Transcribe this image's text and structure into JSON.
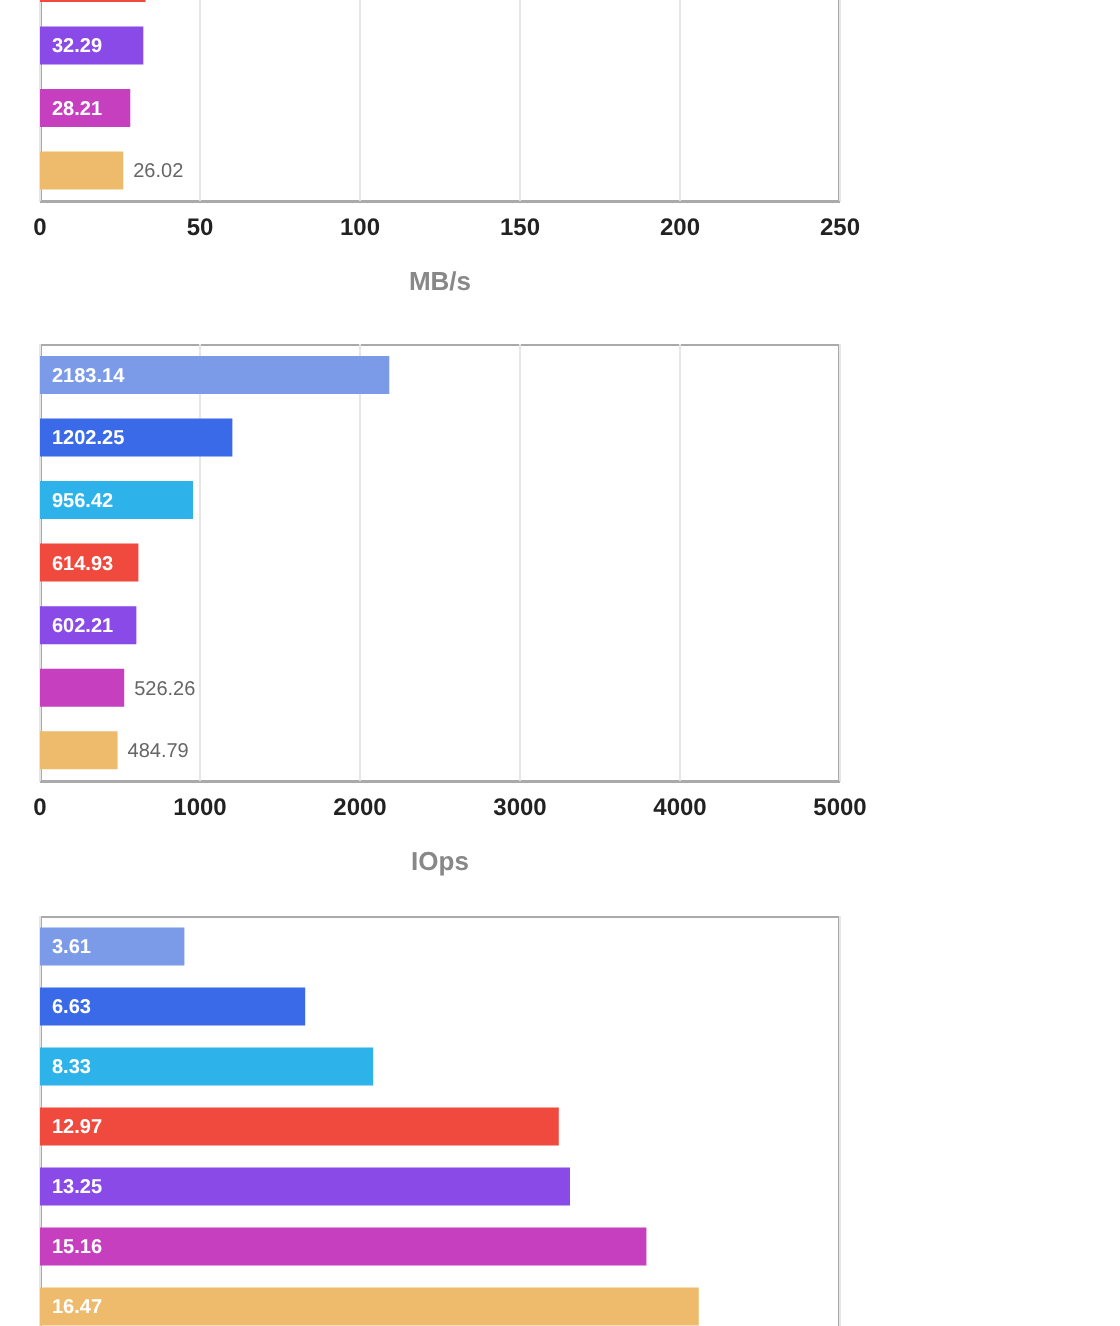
{
  "chart_data": [
    {
      "type": "bar",
      "orientation": "horizontal",
      "categories": [
        null,
        null,
        null,
        null
      ],
      "values": [
        33,
        32.29,
        28.21,
        26.02
      ],
      "value_labels": [
        null,
        "32.29",
        "28.21",
        "26.02"
      ],
      "colors": [
        "#ef4a3d",
        "#8a4ae8",
        "#c63fbf",
        "#eebb6c"
      ],
      "xlim": [
        0,
        250
      ],
      "xticks": [
        0,
        50,
        100,
        150,
        200,
        250
      ],
      "xlabel": "MB/s",
      "grid": "x",
      "tick_labels": "x"
    },
    {
      "type": "bar",
      "orientation": "horizontal",
      "categories": [
        null,
        null,
        null,
        null,
        null,
        null,
        null
      ],
      "values": [
        2183.14,
        1202.25,
        956.42,
        614.93,
        602.21,
        526.26,
        484.79
      ],
      "colors": [
        "#7b9be8",
        "#3a6ae8",
        "#2db3ea",
        "#ef4a3d",
        "#8a4ae8",
        "#c63fbf",
        "#eebb6c"
      ],
      "data_labels": true,
      "xlim": [
        0,
        5000
      ],
      "xticks": [
        0,
        1000,
        2000,
        3000,
        4000,
        5000
      ],
      "xlabel": "IOps",
      "grid": "x",
      "tick_labels": "x"
    },
    {
      "type": "bar",
      "orientation": "horizontal",
      "categories": [
        null,
        null,
        null,
        null,
        null,
        null,
        null
      ],
      "values": [
        3.61,
        6.63,
        8.33,
        12.97,
        13.25,
        15.16,
        16.47
      ],
      "colors": [
        "#7b9be8",
        "#3a6ae8",
        "#2db3ea",
        "#ef4a3d",
        "#8a4ae8",
        "#c63fbf",
        "#eebb6c"
      ],
      "data_labels": true,
      "grid": "x",
      "tick_labels": false
    }
  ]
}
